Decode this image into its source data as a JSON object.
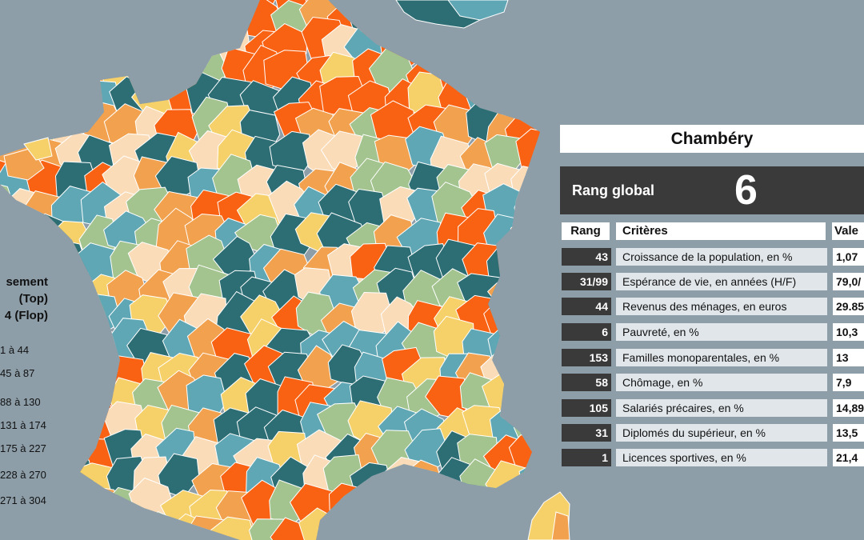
{
  "colors": {
    "background": "#8d9ea9",
    "class_colors": [
      "#2d6e75",
      "#5fa7b5",
      "#a3c48f",
      "#fbdcb8",
      "#f6d16a",
      "#f2a14e",
      "#fa6213"
    ]
  },
  "legend": {
    "title_lines": [
      "sement",
      "(Top)",
      "4 (Flop)"
    ],
    "items": [
      "1 à 44",
      "45 à 87",
      "88 à 130",
      "131 à 174",
      "175 à 227",
      "228 à 270",
      "271 à 304"
    ]
  },
  "panel": {
    "city": "Chambéry",
    "rank_label": "Rang global",
    "rank_value": "6",
    "headers": {
      "rang": "Rang",
      "criteres": "Critères",
      "valeur": "Vale"
    },
    "rows": [
      {
        "rang": "43",
        "critere": "Croissance de la population, en %",
        "valeur": "1,07"
      },
      {
        "rang": "31/99",
        "critere": "Espérance de vie, en années (H/F)",
        "valeur": "79,0/"
      },
      {
        "rang": "44",
        "critere": "Revenus des ménages, en euros",
        "valeur": "29.85"
      },
      {
        "rang": "6",
        "critere": "Pauvreté, en %",
        "valeur": "10,3"
      },
      {
        "rang": "153",
        "critere": "Familles monoparentales, en %",
        "valeur": "13"
      },
      {
        "rang": "58",
        "critere": "Chômage, en %",
        "valeur": "7,9"
      },
      {
        "rang": "105",
        "critere": "Salariés précaires, en %",
        "valeur": "14,89"
      },
      {
        "rang": "31",
        "critere": "Diplomés du supérieur, en %",
        "valeur": "13,5"
      },
      {
        "rang": "1",
        "critere": "Licences sportives, en %",
        "valeur": "21,4"
      }
    ]
  }
}
